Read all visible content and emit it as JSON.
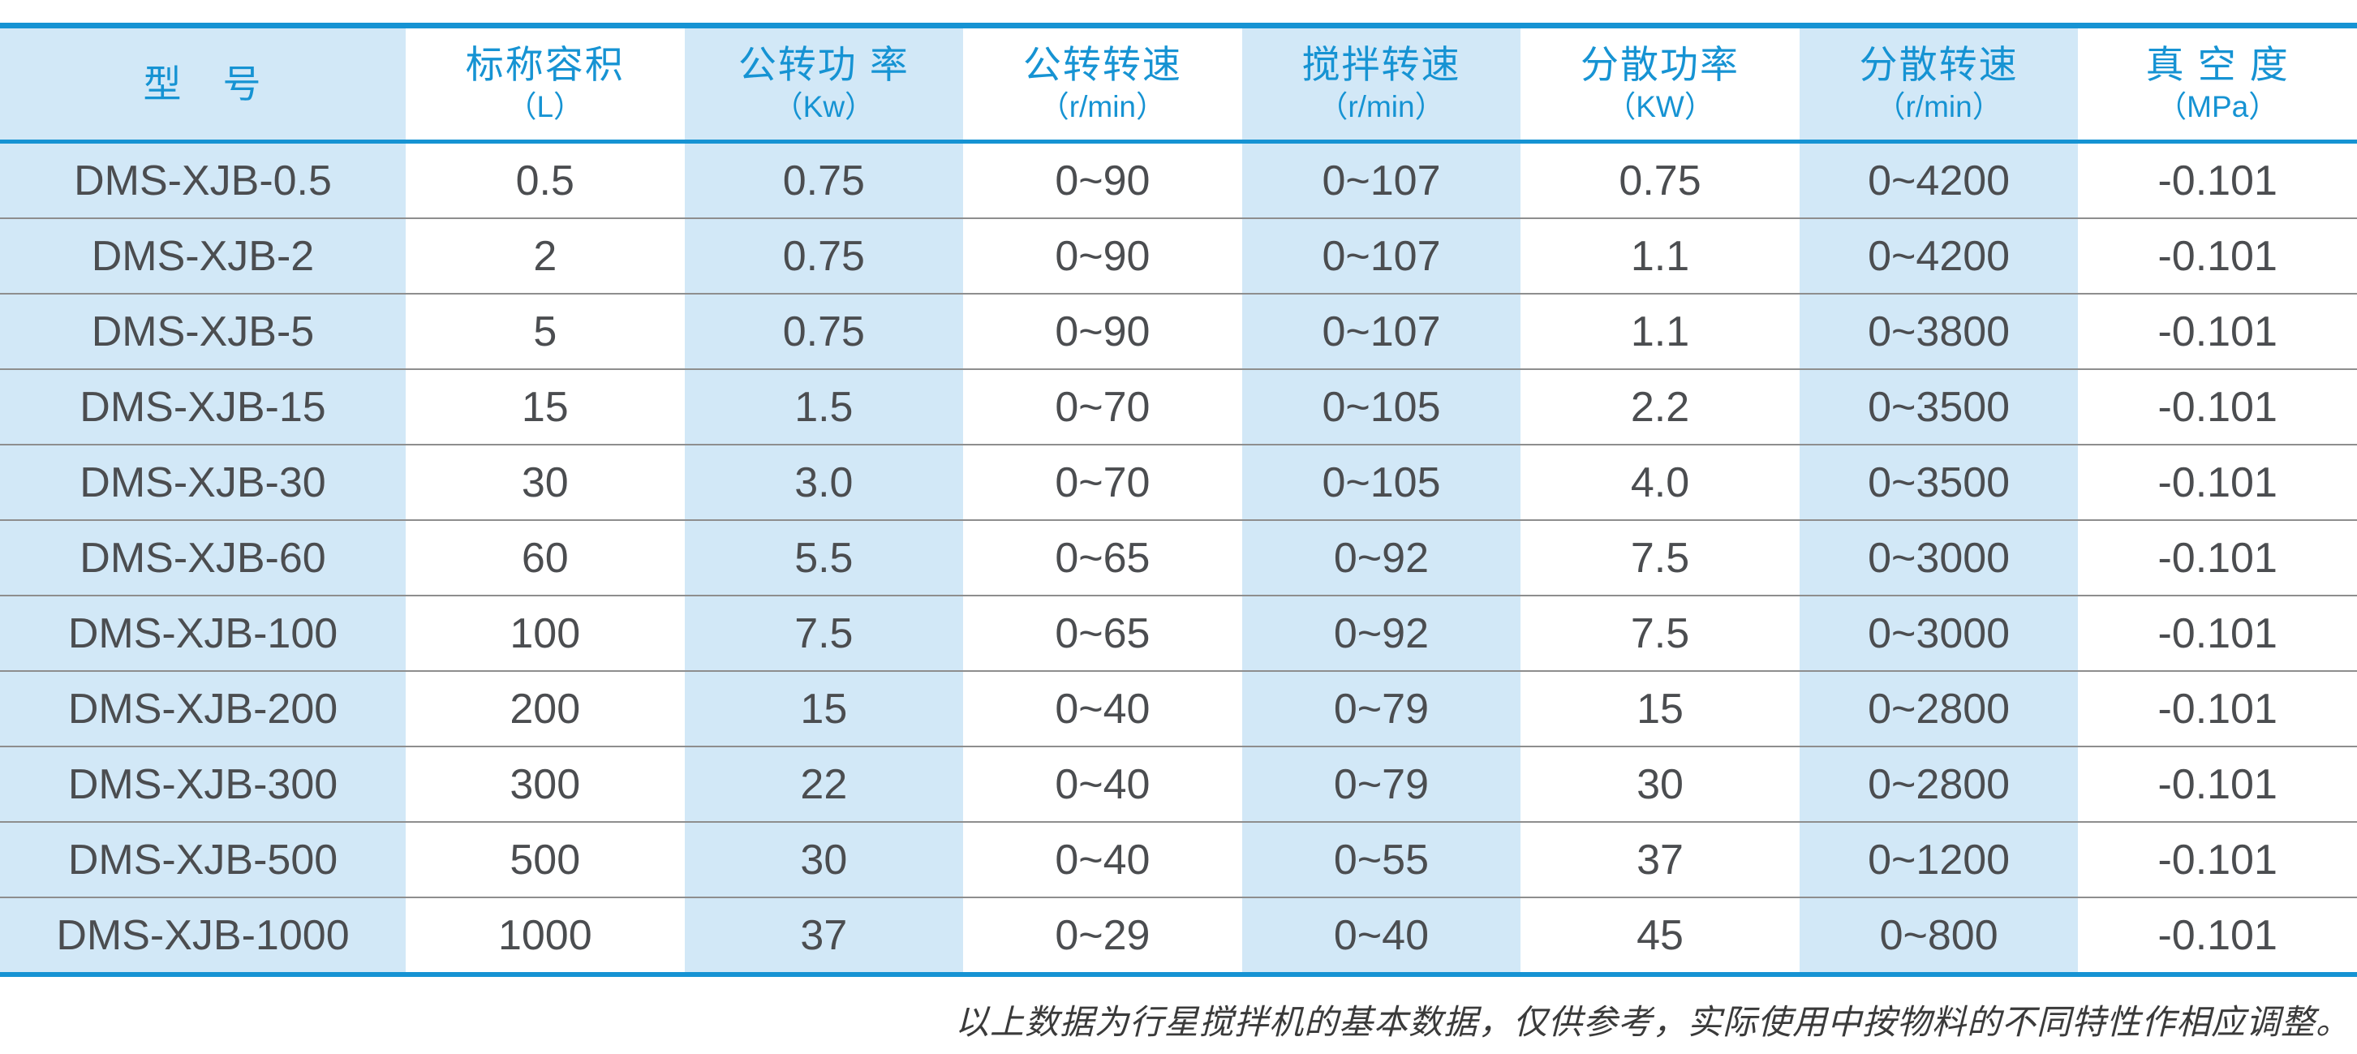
{
  "colors": {
    "accent_blue": "#1693d3",
    "cell_light_blue": "#d2e8f7",
    "body_text": "#4b4d50",
    "row_divider": "#8e8e8e"
  },
  "table": {
    "columns": [
      {
        "title": "型　号",
        "unit": ""
      },
      {
        "title": "标称容积",
        "unit": "（L）"
      },
      {
        "title": "公转功 率",
        "unit": "（Kw）"
      },
      {
        "title": "公转转速",
        "unit": "（r/min）"
      },
      {
        "title": "搅拌转速",
        "unit": "（r/min）"
      },
      {
        "title": "分散功率",
        "unit": "（KW）"
      },
      {
        "title": "分散转速",
        "unit": "（r/min）"
      },
      {
        "title": "真 空 度",
        "unit": "（MPa）"
      }
    ],
    "rows": [
      {
        "cells": [
          "DMS-XJB-0.5",
          "0.5",
          "0.75",
          "0~90",
          "0~107",
          "0.75",
          "0~4200",
          "-0.101"
        ]
      },
      {
        "cells": [
          "DMS-XJB-2",
          "2",
          "0.75",
          "0~90",
          "0~107",
          "1.1",
          "0~4200",
          "-0.101"
        ]
      },
      {
        "cells": [
          "DMS-XJB-5",
          "5",
          "0.75",
          "0~90",
          "0~107",
          "1.1",
          "0~3800",
          "-0.101"
        ]
      },
      {
        "cells": [
          "DMS-XJB-15",
          "15",
          "1.5",
          "0~70",
          "0~105",
          "2.2",
          "0~3500",
          "-0.101"
        ]
      },
      {
        "cells": [
          "DMS-XJB-30",
          "30",
          "3.0",
          "0~70",
          "0~105",
          "4.0",
          "0~3500",
          "-0.101"
        ]
      },
      {
        "cells": [
          "DMS-XJB-60",
          "60",
          "5.5",
          "0~65",
          "0~92",
          "7.5",
          "0~3000",
          "-0.101"
        ]
      },
      {
        "cells": [
          "DMS-XJB-100",
          "100",
          "7.5",
          "0~65",
          "0~92",
          "7.5",
          "0~3000",
          "-0.101"
        ]
      },
      {
        "cells": [
          "DMS-XJB-200",
          "200",
          "15",
          "0~40",
          "0~79",
          "15",
          "0~2800",
          "-0.101"
        ]
      },
      {
        "cells": [
          "DMS-XJB-300",
          "300",
          "22",
          "0~40",
          "0~79",
          "30",
          "0~2800",
          "-0.101"
        ]
      },
      {
        "cells": [
          "DMS-XJB-500",
          "500",
          "30",
          "0~40",
          "0~55",
          "37",
          "0~1200",
          "-0.101"
        ]
      },
      {
        "cells": [
          "DMS-XJB-1000",
          "1000",
          "37",
          "0~29",
          "0~40",
          "45",
          "0~800",
          "-0.101"
        ]
      }
    ]
  },
  "note": "以上数据为行星搅拌机的基本数据，仅供参考，实际使用中按物料的不同特性作相应调整。"
}
